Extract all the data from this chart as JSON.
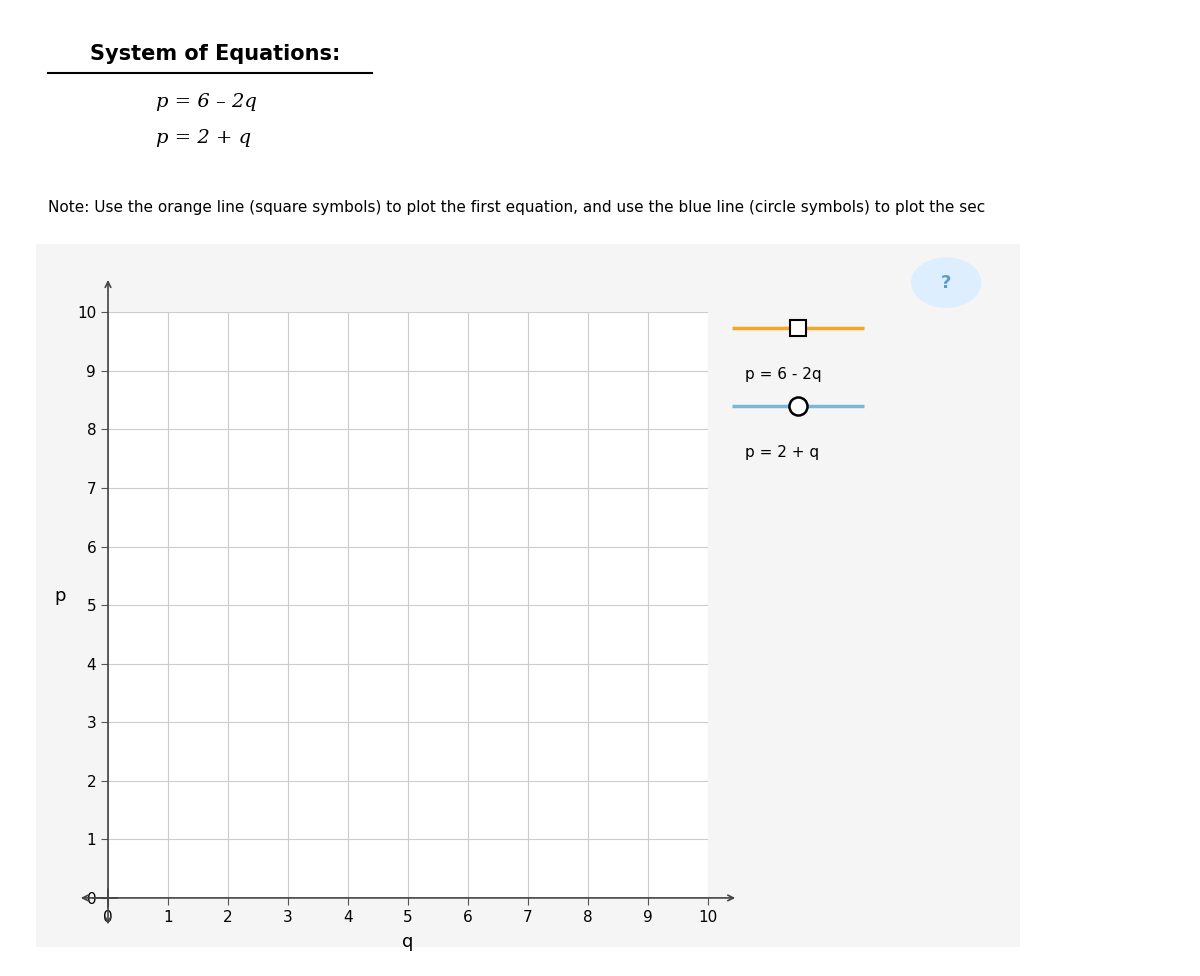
{
  "title_header": "System of Equations:",
  "eq1": "p = 6 – 2q",
  "eq2": "p = 2 + q",
  "note_text": "Note: Use the orange line (square symbols) to plot the first equation, and use the blue line (circle symbols) to plot the sec",
  "xlabel": "q",
  "ylabel": "p",
  "xlim": [
    0,
    10
  ],
  "ylim": [
    0,
    10
  ],
  "xticks": [
    0,
    1,
    2,
    3,
    4,
    5,
    6,
    7,
    8,
    9,
    10
  ],
  "yticks": [
    0,
    1,
    2,
    3,
    4,
    5,
    6,
    7,
    8,
    9,
    10
  ],
  "orange_color": "#F5A623",
  "blue_color": "#7EB6D9",
  "grid_color": "#CCCCCC",
  "legend_label1": "p = 6 - 2q",
  "legend_label2": "p = 2 + q",
  "header_bar_color": "#C8B882",
  "question_mark_color": "#5B9BD5",
  "question_mark_bg": "#DDEEFF",
  "box_bg": "#F5F5F5",
  "box_edge": "#BBBBBB"
}
